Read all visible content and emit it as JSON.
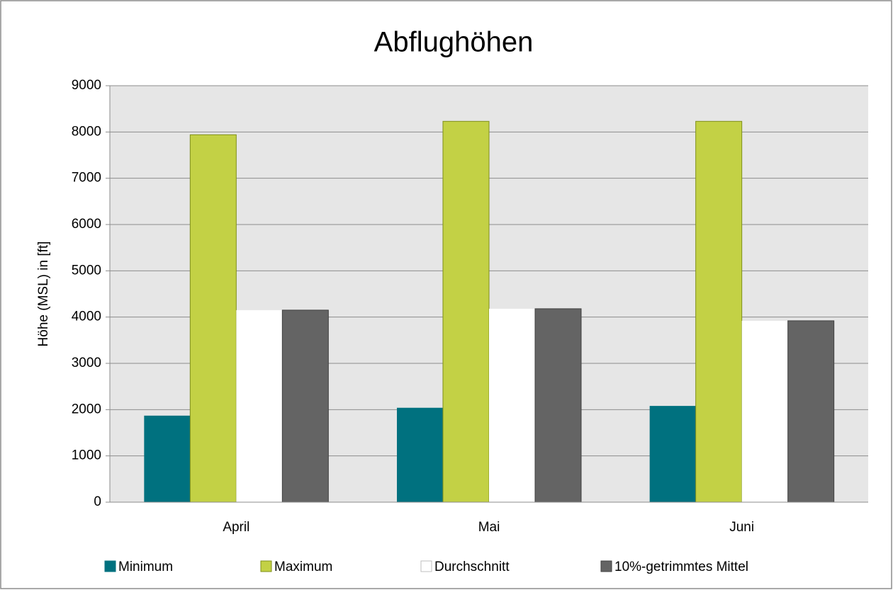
{
  "chart_data": {
    "type": "bar",
    "title": "Abflughöhen",
    "y_label": "Höhe (MSL) in [ft]",
    "categories": [
      "April",
      "Mai",
      "Juni"
    ],
    "series": [
      {
        "name": "Minimum",
        "color": "#00717f",
        "values": [
          1870,
          2040,
          2080
        ]
      },
      {
        "name": "Maximum",
        "color": "#c3d145",
        "values": [
          7940,
          8230,
          8230
        ]
      },
      {
        "name": "Durchschnitt",
        "color": "#ffffff",
        "values": [
          4150,
          4180,
          3920
        ]
      },
      {
        "name": "10%-getrimmtes Mittel",
        "color": "#646464",
        "values": [
          4150,
          4180,
          3920
        ]
      }
    ],
    "ylim": [
      0,
      9000
    ],
    "yticks": [
      0,
      1000,
      2000,
      3000,
      4000,
      5000,
      6000,
      7000,
      8000,
      9000
    ],
    "grid": true,
    "legend": "bottom"
  }
}
